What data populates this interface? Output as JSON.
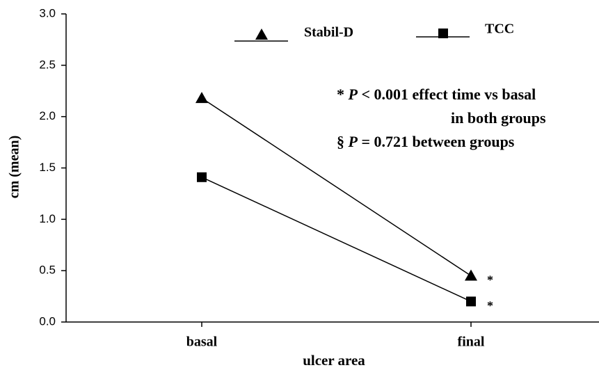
{
  "chart_data": {
    "type": "line",
    "x_label": "ulcer area",
    "y_label": "cm (mean)",
    "categories": [
      "basal",
      "final"
    ],
    "series": [
      {
        "name": "Stabil-D",
        "color": "#000000",
        "marker": "triangle",
        "values": [
          2.18,
          0.45
        ],
        "annotation": "*"
      },
      {
        "name": "TCC",
        "color": "#000000",
        "marker": "square",
        "values": [
          1.41,
          0.2
        ],
        "annotation": "*"
      }
    ],
    "ylim": [
      0,
      3
    ],
    "yticks": [
      {
        "value": 0,
        "label": "0.0"
      },
      0.5,
      {
        "value": 1,
        "label": "1.0"
      },
      1.5,
      {
        "value": 2,
        "label": "2.0"
      },
      2.5,
      {
        "value": 3,
        "label": "3.0"
      }
    ],
    "annotation_lines": [
      [
        "* ",
        "P",
        " < 0.001 effect time vs basal"
      ],
      [
        "in both groups"
      ],
      [
        "§ ",
        "P",
        " = 0.721 between groups"
      ]
    ],
    "grid": false
  }
}
